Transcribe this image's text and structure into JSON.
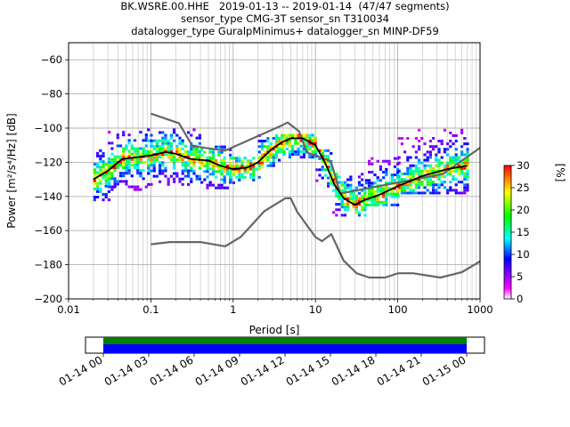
{
  "title_lines": [
    "BK.WSRE.00.HHE   2019-01-13 -- 2019-01-14  (47/47 segments)",
    "sensor_type CMG-3T sensor_sn T310034",
    "datalogger_type GuralpMinimus+ datalogger_sn MINP-DF59"
  ],
  "chart_data": [
    {
      "type": "heatmap",
      "x_scale": "log",
      "xlabel": "Period [s]",
      "ylabel": "Power [m²/s⁴/Hz] [dB]",
      "xlim": [
        0.01,
        1000
      ],
      "ylim": [
        -200,
        -50
      ],
      "x_ticks": [
        0.01,
        0.1,
        1,
        10,
        100,
        1000
      ],
      "x_tick_labels": [
        "0.01",
        "0.1",
        "1",
        "10",
        "100",
        "1000"
      ],
      "y_ticks": [
        -200,
        -180,
        -160,
        -140,
        -120,
        -100,
        -80,
        -60
      ],
      "y_tick_labels": [
        "−200",
        "−180",
        "−160",
        "−140",
        "−120",
        "−100",
        "−80",
        "−60"
      ],
      "grid": true,
      "colorbar": {
        "label": "[%]",
        "range": [
          0,
          30
        ],
        "ticks": [
          0,
          5,
          10,
          15,
          20,
          25,
          30
        ],
        "colors": [
          "#ffffff",
          "#ff00ff",
          "#0000ff",
          "#00ffff",
          "#00ff00",
          "#ffff00",
          "#ff0000"
        ]
      },
      "series": [
        {
          "name": "",
          "kind": "high_noise_model",
          "color": "#666666",
          "points": [
            [
              0.1,
              -91.5
            ],
            [
              0.22,
              -97.2
            ],
            [
              0.32,
              -110.5
            ],
            [
              0.8,
              -113.2
            ],
            [
              3.8,
              -98.7
            ],
            [
              4.6,
              -96.7
            ],
            [
              6.3,
              -101.8
            ],
            [
              7.9,
              -114.3
            ],
            [
              15.4,
              -119.4
            ],
            [
              20,
              -138.3
            ],
            [
              354.8,
              -126.9
            ],
            [
              1000,
              -111.5
            ]
          ]
        },
        {
          "name": "",
          "kind": "low_noise_model",
          "color": "#666666",
          "points": [
            [
              0.1,
              -168
            ],
            [
              0.17,
              -166.7
            ],
            [
              0.4,
              -166.7
            ],
            [
              0.8,
              -169.2
            ],
            [
              1.24,
              -163.7
            ],
            [
              2.4,
              -148.6
            ],
            [
              4.3,
              -141.1
            ],
            [
              5,
              -141.1
            ],
            [
              6,
              -149
            ],
            [
              10,
              -163.8
            ],
            [
              12,
              -166.2
            ],
            [
              15.6,
              -162.1
            ],
            [
              21.9,
              -177.5
            ],
            [
              31.6,
              -185
            ],
            [
              45,
              -187.5
            ],
            [
              70,
              -187.5
            ],
            [
              101,
              -185
            ],
            [
              154,
              -185
            ],
            [
              328,
              -187.5
            ],
            [
              600,
              -184.4
            ],
            [
              1000,
              -178
            ]
          ]
        },
        {
          "name": "",
          "kind": "mode",
          "color": "#000000",
          "points": [
            [
              0.02,
              -130
            ],
            [
              0.03,
              -125
            ],
            [
              0.045,
              -118
            ],
            [
              0.07,
              -117
            ],
            [
              0.1,
              -116
            ],
            [
              0.15,
              -114
            ],
            [
              0.2,
              -115
            ],
            [
              0.3,
              -118
            ],
            [
              0.5,
              -119
            ],
            [
              0.7,
              -122
            ],
            [
              1,
              -124
            ],
            [
              1.5,
              -123
            ],
            [
              2,
              -120
            ],
            [
              3,
              -112
            ],
            [
              4,
              -108
            ],
            [
              5,
              -106
            ],
            [
              7,
              -106
            ],
            [
              10,
              -110
            ],
            [
              13,
              -120
            ],
            [
              17,
              -133
            ],
            [
              22,
              -141
            ],
            [
              30,
              -145
            ],
            [
              40,
              -142
            ],
            [
              60,
              -139
            ],
            [
              100,
              -134
            ],
            [
              200,
              -128
            ],
            [
              400,
              -124
            ],
            [
              700,
              -122
            ]
          ]
        },
        {
          "name": "",
          "kind": "psd_density",
          "color_levels": "percent of segments",
          "bands": [
            {
              "x": [
                0.02,
                0.03
              ],
              "y": [
                -142,
                -113
              ]
            },
            {
              "x": [
                0.03,
                0.09
              ],
              "y": [
                -136,
                -101
              ]
            },
            {
              "x": [
                0.09,
                0.4
              ],
              "y": [
                -133,
                -100
              ]
            },
            {
              "x": [
                0.4,
                0.9
              ],
              "y": [
                -135,
                -111
              ]
            },
            {
              "x": [
                0.9,
                2
              ],
              "y": [
                -132,
                -117
              ]
            },
            {
              "x": [
                2,
                4
              ],
              "y": [
                -122,
                -104
              ]
            },
            {
              "x": [
                4,
                10
              ],
              "y": [
                -117,
                -104
              ]
            },
            {
              "x": [
                10,
                16
              ],
              "y": [
                -134,
                -112
              ]
            },
            {
              "x": [
                16,
                40
              ],
              "y": [
                -151,
                -126
              ]
            },
            {
              "x": [
                40,
                100
              ],
              "y": [
                -145,
                -117
              ]
            },
            {
              "x": [
                100,
                680
              ],
              "y": [
                -138,
                -100
              ]
            }
          ]
        }
      ]
    },
    {
      "type": "timeline",
      "x_tick_labels": [
        "01-14 00",
        "01-14 03",
        "01-14 06",
        "01-14 09",
        "01-14 12",
        "01-14 15",
        "01-14 18",
        "01-14 21",
        "01-15 00"
      ],
      "coverage": {
        "start": "01-14 00",
        "end": "01-15 00",
        "colors": [
          "#008000",
          "#0000ff"
        ]
      }
    }
  ]
}
